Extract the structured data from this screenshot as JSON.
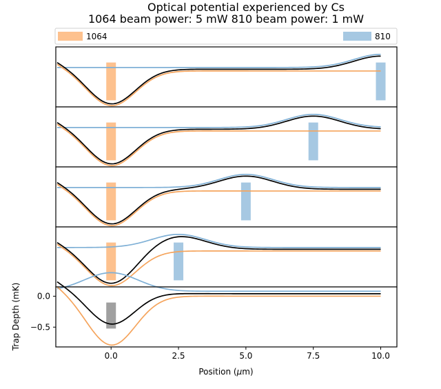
{
  "chart_data": {
    "type": "line",
    "title_line1": "Optical potential experienced by Cs",
    "title_line2": "1064 beam power: 5 mW   810 beam power: 1 mW",
    "xlabel": "Position ($\\mu$m)",
    "xlabel_text": "Position (",
    "xlabel_mu": "μ",
    "xlabel_unit": "m)",
    "ylabel": "Trap Depth (mK)",
    "xlim": [
      -2.05,
      10.6
    ],
    "x_ticks": [
      0.0,
      2.5,
      5.0,
      7.5,
      10.0
    ],
    "x_tick_labels": [
      "0.0",
      "2.5",
      "5.0",
      "7.5",
      "10.0"
    ],
    "bottom_panel_ylim": [
      -0.82,
      0.15
    ],
    "bottom_panel_y_ticks": [
      0.0,
      -0.5
    ],
    "bottom_panel_y_tick_labels": [
      "0.0",
      "−0.5"
    ],
    "legend": {
      "placement": "top, above panels",
      "entries": [
        {
          "label": "1064",
          "color": "#f5a45c"
        },
        {
          "label": "810",
          "color": "#7fb0d6"
        }
      ]
    },
    "colors": {
      "beam_1064": "#f5a45c",
      "beam_810": "#7fb0d6",
      "total": "#000000",
      "bar_1064": "#fdc18e",
      "bar_810": "#a6c8e2",
      "bar_overlap": "#a0a0a0"
    },
    "x_range": [
      -2.0,
      10.0
    ],
    "beam_1064_position": 0.0,
    "panels": [
      {
        "position_810": 10.0,
        "ylim": [
          -0.82,
          0.55
        ]
      },
      {
        "position_810": 7.5,
        "ylim": [
          -0.82,
          0.55
        ]
      },
      {
        "position_810": 5.0,
        "ylim": [
          -0.82,
          0.55
        ]
      },
      {
        "position_810": 2.5,
        "ylim": [
          -0.82,
          0.55
        ]
      },
      {
        "position_810": 0.0,
        "ylim": [
          -0.82,
          0.15
        ]
      }
    ]
  }
}
